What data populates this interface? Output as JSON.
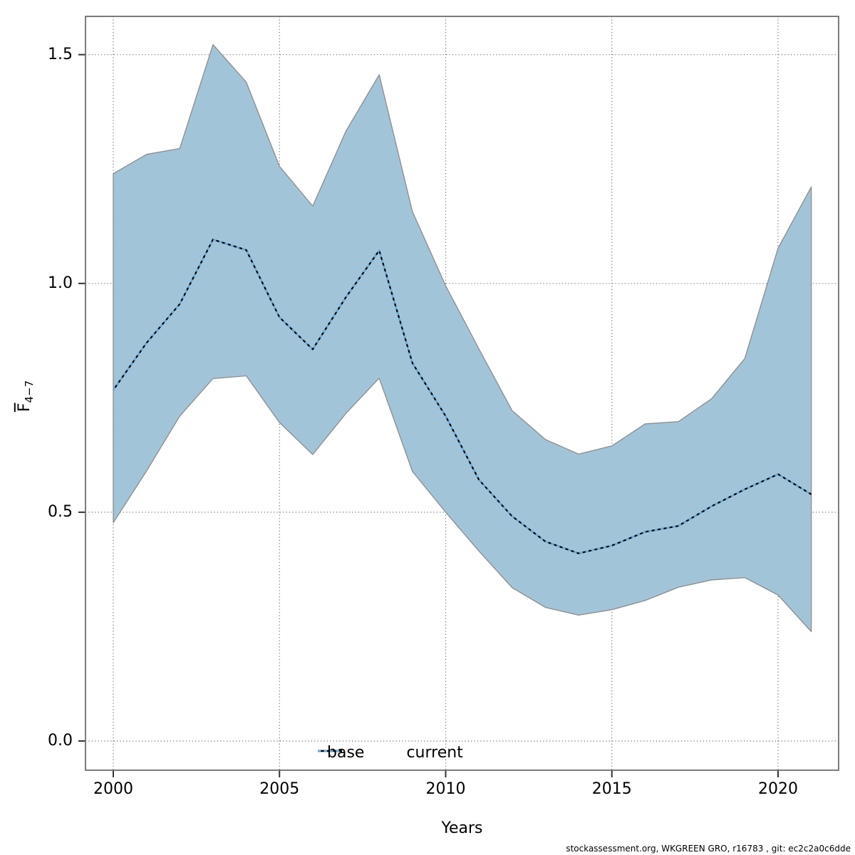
{
  "chart_data": {
    "type": "line",
    "title": "",
    "xlabel": "Years",
    "ylabel": "F(bar)_4-7",
    "x": [
      2000,
      2001,
      2002,
      2003,
      2004,
      2005,
      2006,
      2007,
      2008,
      2009,
      2010,
      2011,
      2012,
      2013,
      2014,
      2015,
      2016,
      2017,
      2018,
      2019,
      2020,
      2021
    ],
    "series": [
      {
        "name": "base",
        "style": "solid",
        "color": "#000000",
        "values": [
          0.767,
          0.87,
          0.955,
          1.096,
          1.073,
          0.926,
          0.856,
          0.97,
          1.072,
          0.826,
          0.71,
          0.571,
          0.491,
          0.436,
          0.41,
          0.427,
          0.457,
          0.47,
          0.513,
          0.55,
          0.583,
          0.539
        ]
      },
      {
        "name": "current",
        "style": "dotted",
        "color": "#68acdf",
        "values": [
          0.767,
          0.87,
          0.955,
          1.096,
          1.073,
          0.926,
          0.856,
          0.97,
          1.072,
          0.826,
          0.71,
          0.571,
          0.491,
          0.436,
          0.41,
          0.427,
          0.457,
          0.47,
          0.513,
          0.55,
          0.583,
          0.539
        ],
        "band_upper": [
          1.24,
          1.282,
          1.295,
          1.522,
          1.44,
          1.256,
          1.169,
          1.333,
          1.456,
          1.157,
          0.995,
          0.857,
          0.722,
          0.659,
          0.627,
          0.645,
          0.693,
          0.698,
          0.748,
          0.836,
          1.077,
          1.211
        ],
        "band_lower": [
          0.477,
          0.59,
          0.71,
          0.792,
          0.798,
          0.696,
          0.626,
          0.716,
          0.793,
          0.589,
          0.5,
          0.415,
          0.335,
          0.292,
          0.275,
          0.287,
          0.307,
          0.336,
          0.352,
          0.357,
          0.319,
          0.239
        ],
        "band_color": "#a2c4d8"
      }
    ],
    "xlim": [
      1999.2,
      2021.8
    ],
    "ylim": [
      -0.06,
      1.58
    ],
    "x_ticks": [
      {
        "value": 2000,
        "label": "2000"
      },
      {
        "value": 2005,
        "label": "2005"
      },
      {
        "value": 2010,
        "label": "2010"
      },
      {
        "value": 2015,
        "label": "2015"
      },
      {
        "value": 2020,
        "label": "2020"
      }
    ],
    "y_ticks": [
      {
        "value": 0.0,
        "label": "0.0"
      },
      {
        "value": 0.5,
        "label": "0.5"
      },
      {
        "value": 1.0,
        "label": "1.0"
      },
      {
        "value": 1.5,
        "label": "1.5"
      }
    ],
    "grid": "dotted",
    "legend_position": "bottom"
  },
  "axes": {
    "xlabel": "Years",
    "ylabel_base": "F",
    "ylabel_sub": "4−7"
  },
  "legend": {
    "items": [
      {
        "label": "base"
      },
      {
        "label": "current"
      }
    ]
  },
  "footer": {
    "text": "stockassessment.org, WKGREEN GRO, r16783 , git: ec2c2a0c6dde"
  },
  "colors": {
    "band_fill": "#a2c4d8",
    "band_edge": "#8c8c8c",
    "base_line": "#000000",
    "current_line": "#68acdf",
    "gridline": "#6e6e6e",
    "plot_border": "#6e6e6e",
    "tick": "#333333"
  }
}
